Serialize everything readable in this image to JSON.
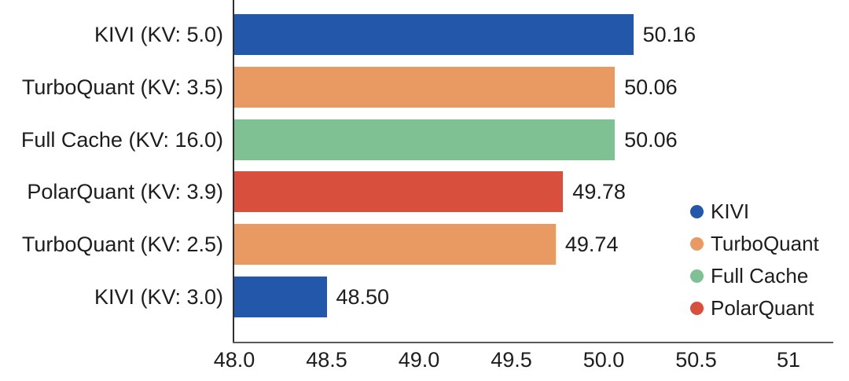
{
  "chart_data": {
    "type": "bar",
    "orientation": "horizontal",
    "title": "",
    "xlabel": "",
    "ylabel": "",
    "categories": [
      "KIVI (KV: 5.0)",
      "TurboQuant (KV: 3.5)",
      "Full Cache (KV: 16.0)",
      "PolarQuant (KV: 3.9)",
      "TurboQuant (KV: 2.5)",
      "KIVI (KV: 3.0)"
    ],
    "values": [
      50.16,
      50.06,
      50.06,
      49.78,
      49.74,
      48.5
    ],
    "value_labels": [
      "50.16",
      "50.06",
      "50.06",
      "49.78",
      "49.74",
      "48.50"
    ],
    "bar_series": [
      "KIVI",
      "TurboQuant",
      "Full Cache",
      "PolarQuant",
      "TurboQuant",
      "KIVI"
    ],
    "bar_colors": [
      "#2257A9",
      "#E99A63",
      "#7FC193",
      "#D94F3D",
      "#E99A63",
      "#2257A9"
    ],
    "xlim": [
      48.0,
      51.25
    ],
    "x_ticks": [
      {
        "value": 48.0,
        "label": "48.0"
      },
      {
        "value": 48.5,
        "label": "48.5"
      },
      {
        "value": 49.0,
        "label": "49.0"
      },
      {
        "value": 49.5,
        "label": "49.5"
      },
      {
        "value": 50.0,
        "label": "50.0"
      },
      {
        "value": 50.5,
        "label": "50.5"
      },
      {
        "value": 51.0,
        "label": "51"
      }
    ],
    "grid": false,
    "legend": {
      "position": "right",
      "entries": [
        {
          "label": "KIVI",
          "color": "#2257A9"
        },
        {
          "label": "TurboQuant",
          "color": "#E99A63"
        },
        {
          "label": "Full Cache",
          "color": "#7FC193"
        },
        {
          "label": "PolarQuant",
          "color": "#D94F3D"
        }
      ]
    },
    "colors": {
      "text": "#1d1d1f",
      "axis": "#4a4a4a",
      "background": "#ffffff"
    }
  }
}
